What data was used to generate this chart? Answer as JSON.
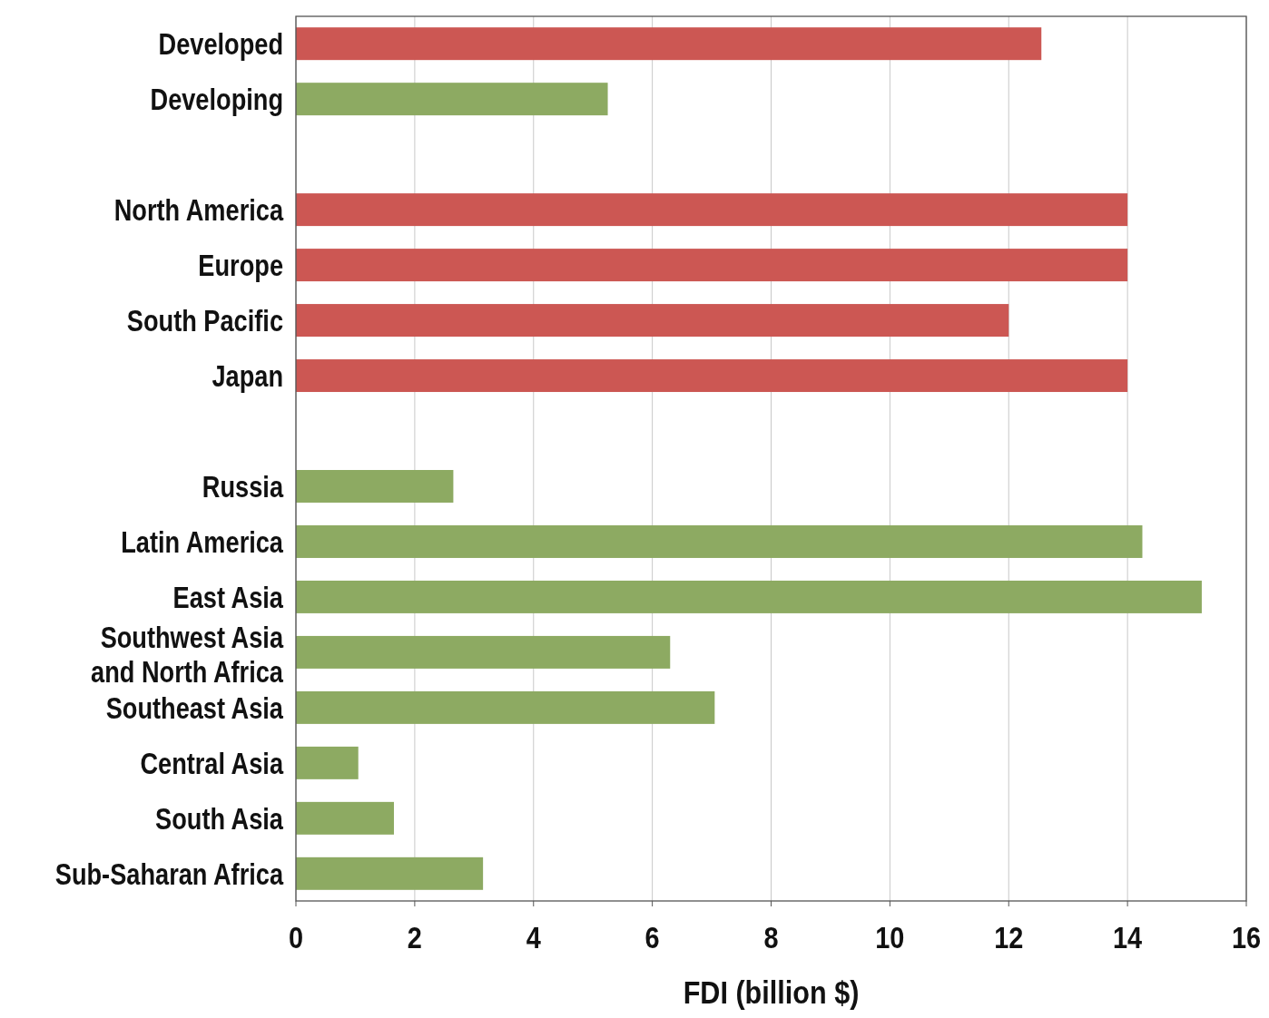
{
  "chart_data": {
    "type": "bar",
    "orientation": "horizontal",
    "xlabel": "FDI (billion $)",
    "categories": [
      "Developed",
      "Developing",
      null,
      "North America",
      "Europe",
      "South Pacific",
      "Japan",
      null,
      "Russia",
      "Latin America",
      "East Asia",
      "Southwest Asia and North Africa",
      "Southeast Asia",
      "Central Asia",
      "South Asia",
      "Sub-Saharan Africa"
    ],
    "values": [
      12.55,
      5.25,
      null,
      14,
      14,
      12,
      14,
      null,
      2.65,
      14.25,
      15.25,
      6.3,
      7.05,
      1.05,
      1.65,
      3.15
    ],
    "colors": [
      "#cc5753",
      "#8daa62",
      null,
      "#cc5753",
      "#cc5753",
      "#cc5753",
      "#cc5753",
      null,
      "#8daa62",
      "#8daa62",
      "#8daa62",
      "#8daa62",
      "#8daa62",
      "#8daa62",
      "#8daa62",
      "#8daa62"
    ],
    "xlim": [
      0,
      16
    ],
    "xticks": [
      0,
      2,
      4,
      6,
      8,
      10,
      12,
      14,
      16
    ],
    "grid": "x"
  }
}
